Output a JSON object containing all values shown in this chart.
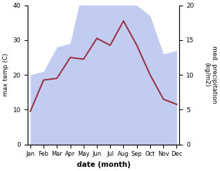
{
  "months": [
    "Jan",
    "Feb",
    "Mar",
    "Apr",
    "May",
    "Jun",
    "Jul",
    "Aug",
    "Sep",
    "Oct",
    "Nov",
    "Dec"
  ],
  "month_positions": [
    0,
    1,
    2,
    3,
    4,
    5,
    6,
    7,
    8,
    9,
    10,
    11
  ],
  "temp": [
    9.5,
    18.5,
    19.0,
    25.0,
    24.5,
    30.5,
    28.5,
    35.5,
    28.5,
    20.0,
    13.0,
    11.5
  ],
  "precip": [
    10.0,
    10.5,
    14.0,
    14.5,
    23.0,
    22.0,
    22.5,
    22.0,
    20.0,
    18.5,
    13.0,
    13.5
  ],
  "temp_color": "#993344",
  "precip_fill_color": "#b8c4ee",
  "precip_alpha": 0.85,
  "ylim_left": [
    0,
    40
  ],
  "ylim_right": [
    0,
    20
  ],
  "left_yticks": [
    0,
    10,
    20,
    30,
    40
  ],
  "right_yticks": [
    0,
    5,
    10,
    15,
    20
  ],
  "ylabel_left": "max temp (C)",
  "ylabel_right": "med. precipitation\n(kg/m2)",
  "xlabel": "date (month)",
  "temp_linewidth": 1.5,
  "figsize": [
    3.18,
    2.47
  ],
  "dpi": 100
}
